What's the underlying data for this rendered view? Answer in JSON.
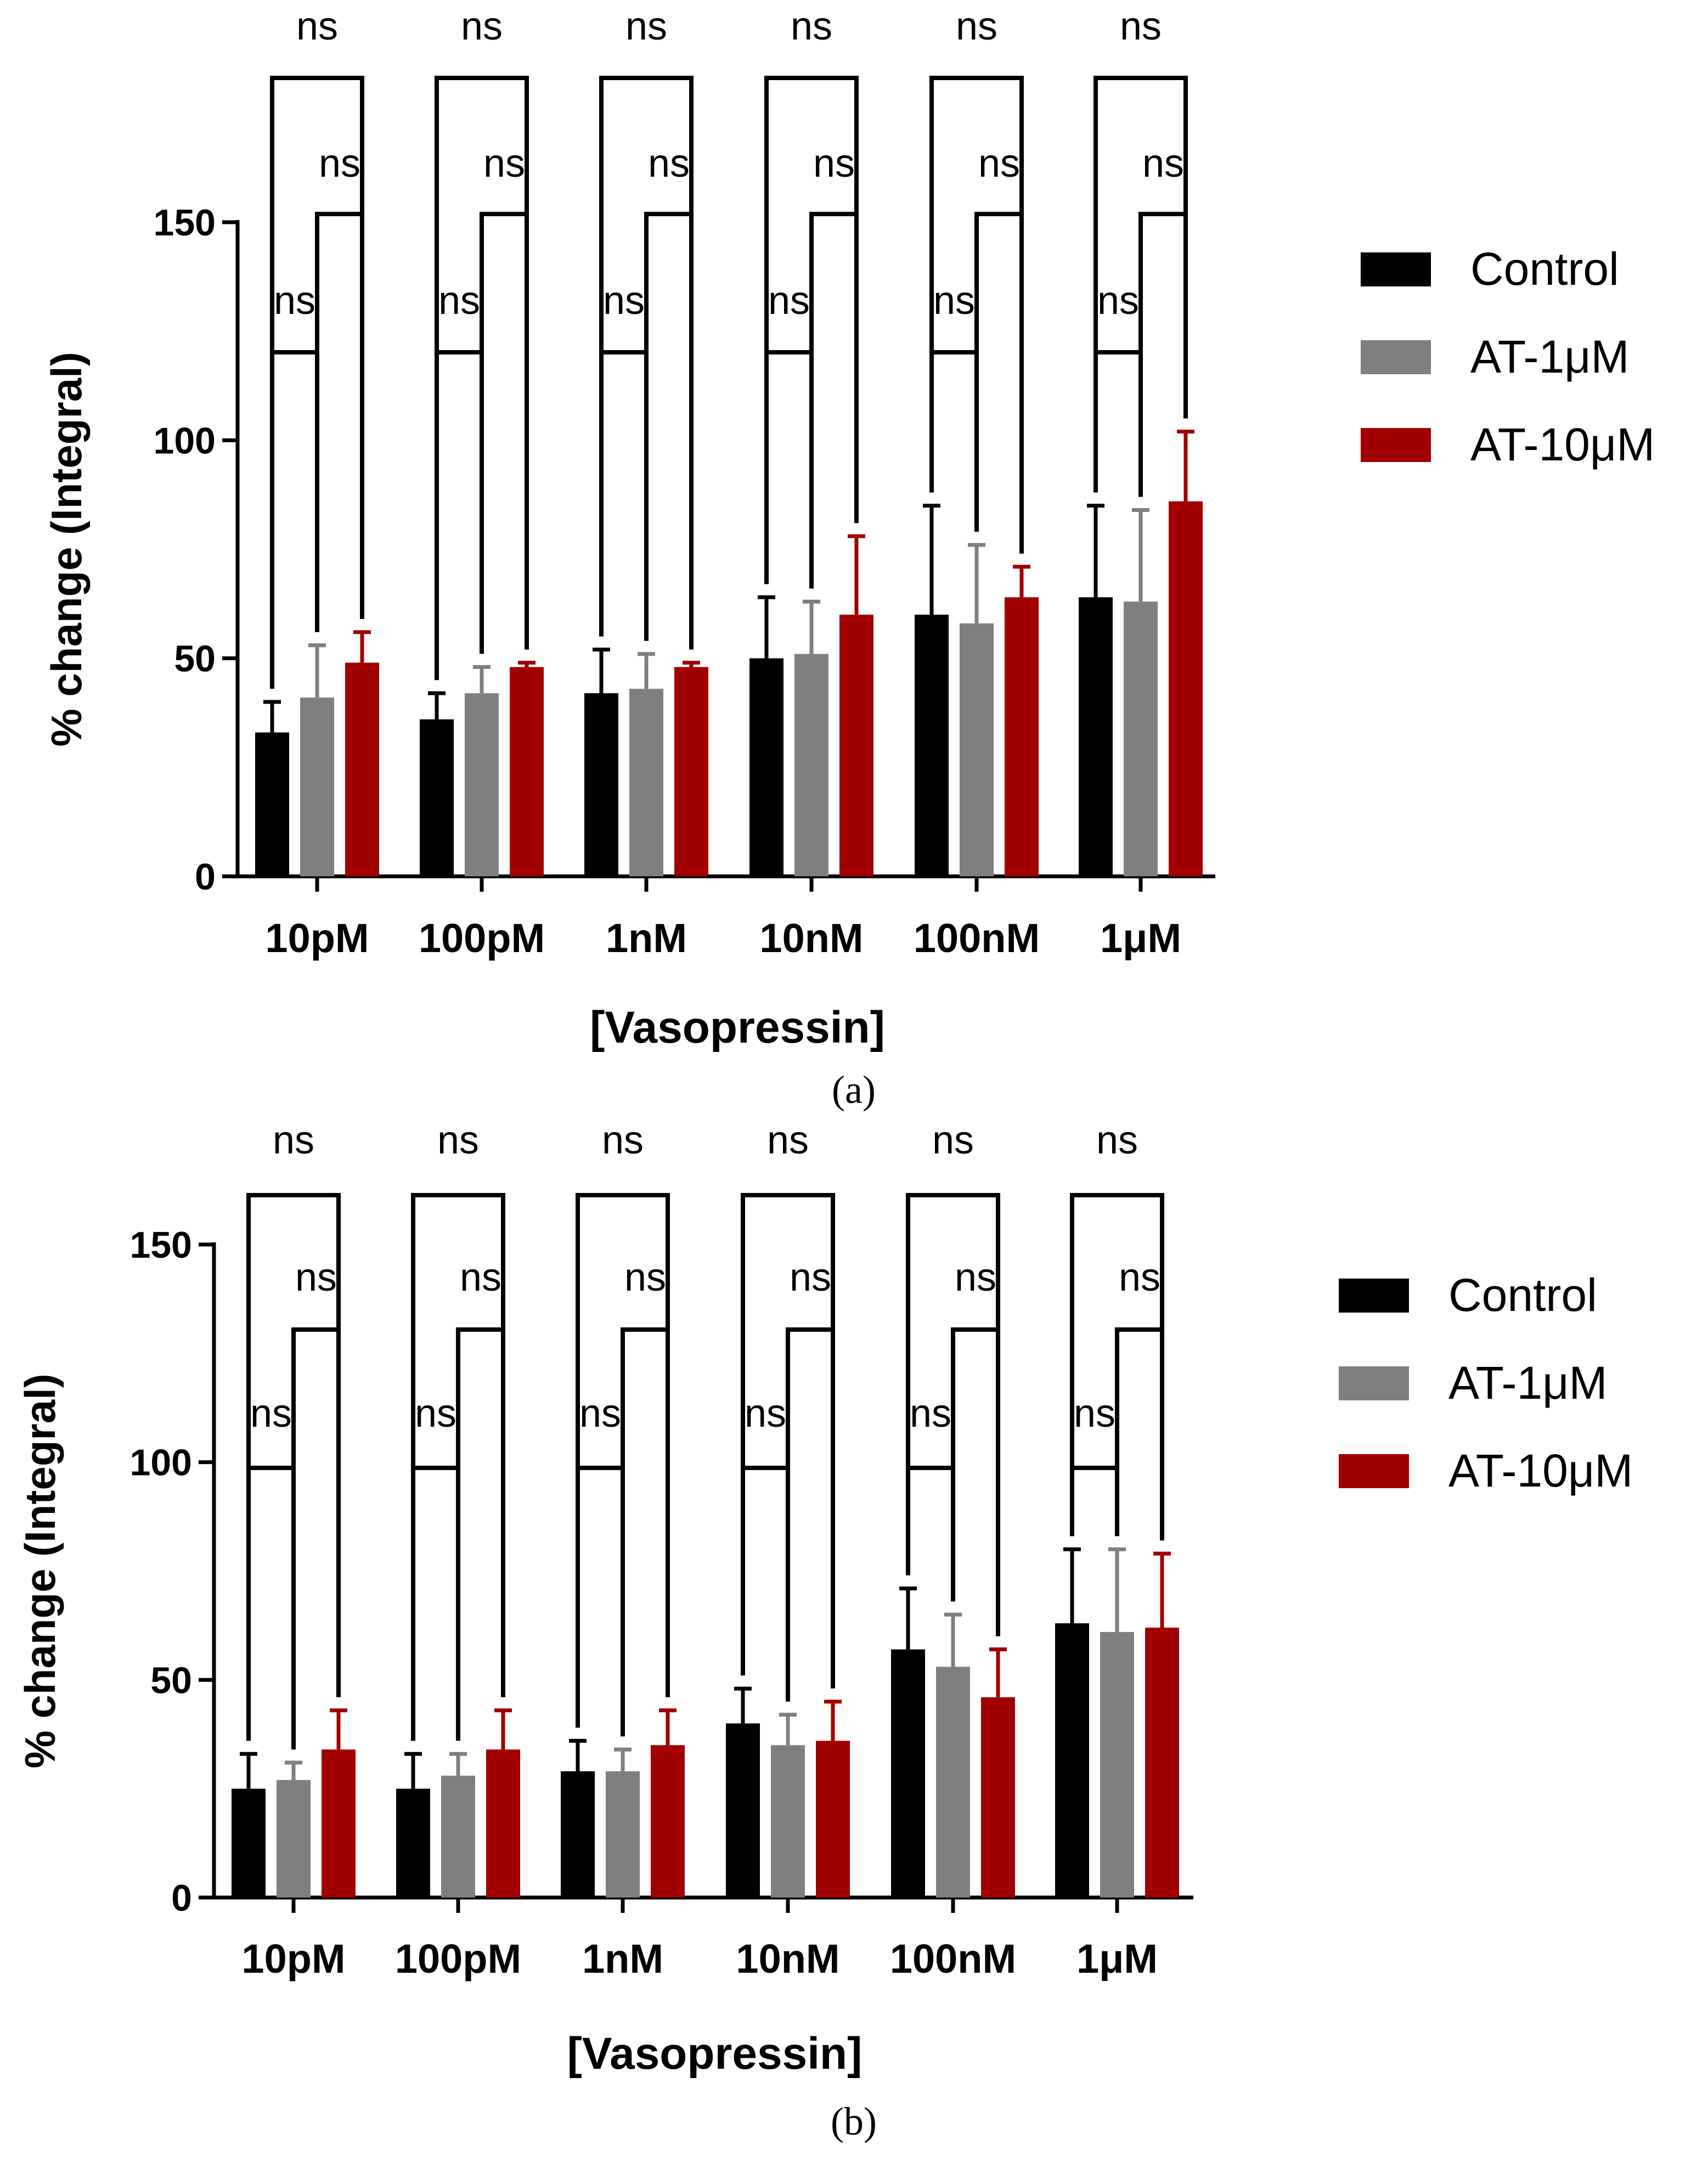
{
  "chart_data": [
    {
      "panel_label": "(a)",
      "type": "bar",
      "ylabel": "% change (Integral)",
      "xlabel": "[Vasopressin]",
      "ylim": [
        0,
        150
      ],
      "yticks": [
        0,
        50,
        100,
        150
      ],
      "categories": [
        "10pM",
        "100pM",
        "1nM",
        "10nM",
        "100nM",
        "1μM"
      ],
      "series": [
        {
          "name": "Control",
          "color": "#000000",
          "values": [
            33,
            36,
            42,
            50,
            60,
            64
          ],
          "errors": [
            7,
            6,
            10,
            14,
            25,
            21
          ]
        },
        {
          "name": "AT-1μM",
          "color": "#7f7f7f",
          "values": [
            41,
            42,
            43,
            51,
            58,
            63
          ],
          "errors": [
            12,
            6,
            8,
            12,
            18,
            21
          ]
        },
        {
          "name": "AT-10μM",
          "color": "#a00000",
          "values": [
            49,
            48,
            48,
            60,
            64,
            86
          ],
          "errors": [
            7,
            1,
            1,
            18,
            7,
            16
          ]
        }
      ],
      "comparison_label": "ns",
      "legend_position": "right"
    },
    {
      "panel_label": "(b)",
      "type": "bar",
      "ylabel": "% change (Integral)",
      "xlabel": "[Vasopressin]",
      "ylim": [
        0,
        150
      ],
      "yticks": [
        0,
        50,
        100,
        150
      ],
      "categories": [
        "10pM",
        "100pM",
        "1nM",
        "10nM",
        "100nM",
        "1μM"
      ],
      "series": [
        {
          "name": "Control",
          "color": "#000000",
          "values": [
            25,
            25,
            29,
            40,
            57,
            63
          ],
          "errors": [
            8,
            8,
            7,
            8,
            14,
            17
          ]
        },
        {
          "name": "AT-1μM",
          "color": "#7f7f7f",
          "values": [
            27,
            28,
            29,
            35,
            53,
            61
          ],
          "errors": [
            4,
            5,
            5,
            7,
            12,
            19
          ]
        },
        {
          "name": "AT-10μM",
          "color": "#a00000",
          "values": [
            34,
            34,
            35,
            36,
            46,
            62
          ],
          "errors": [
            9,
            9,
            8,
            9,
            11,
            17
          ]
        }
      ],
      "comparison_label": "ns",
      "legend_position": "right"
    }
  ]
}
